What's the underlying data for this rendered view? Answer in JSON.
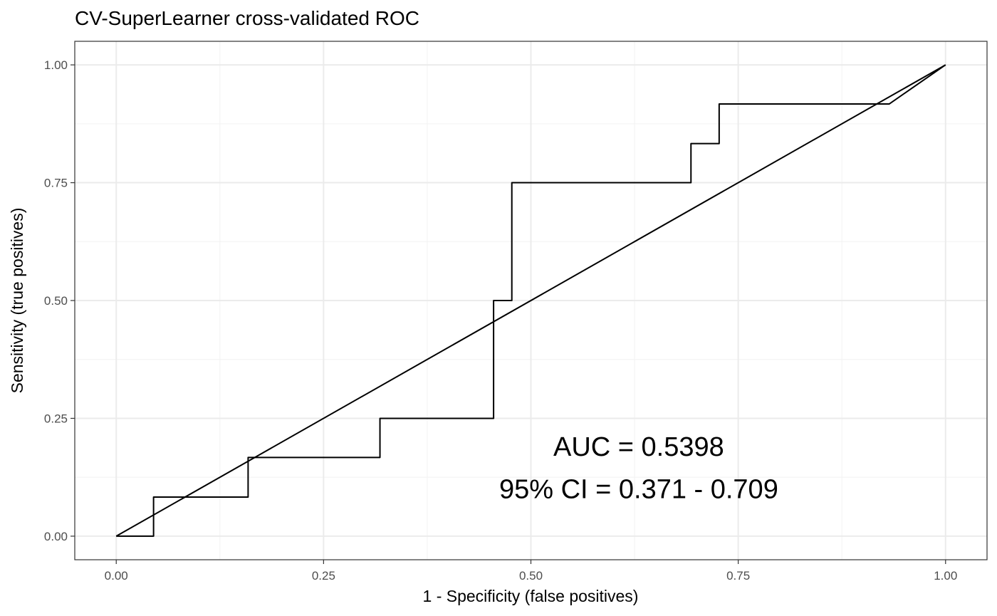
{
  "chart_data": {
    "type": "line",
    "title": "CV-SuperLearner cross-validated ROC",
    "xlabel": "1 - Specificity (false positives)",
    "ylabel": "Sensitivity (true positives)",
    "xlim": [
      -0.05,
      1.05
    ],
    "ylim": [
      -0.05,
      1.05
    ],
    "x_ticks": [
      "0.00",
      "0.25",
      "0.50",
      "0.75",
      "1.00"
    ],
    "y_ticks": [
      "0.00",
      "0.25",
      "0.50",
      "0.75",
      "1.00"
    ],
    "grid": true,
    "series": [
      {
        "x": [
          0.0,
          0.045,
          0.045,
          0.159,
          0.159,
          0.318,
          0.318,
          0.455,
          0.455,
          0.477,
          0.477,
          0.693,
          0.693,
          0.727,
          0.727,
          0.932,
          1.0
        ],
        "y": [
          0.0,
          0.0,
          0.083,
          0.083,
          0.167,
          0.167,
          0.25,
          0.25,
          0.5,
          0.5,
          0.75,
          0.75,
          0.833,
          0.833,
          0.917,
          0.917,
          1.0
        ]
      },
      {
        "x": [
          0.0,
          1.0
        ],
        "y": [
          0.0,
          1.0
        ]
      }
    ],
    "annotations": [
      {
        "text": "AUC = 0.5398",
        "x": 0.63,
        "y": 0.19
      },
      {
        "text": "95% CI = 0.371 - 0.709",
        "x": 0.63,
        "y": 0.1
      }
    ]
  }
}
